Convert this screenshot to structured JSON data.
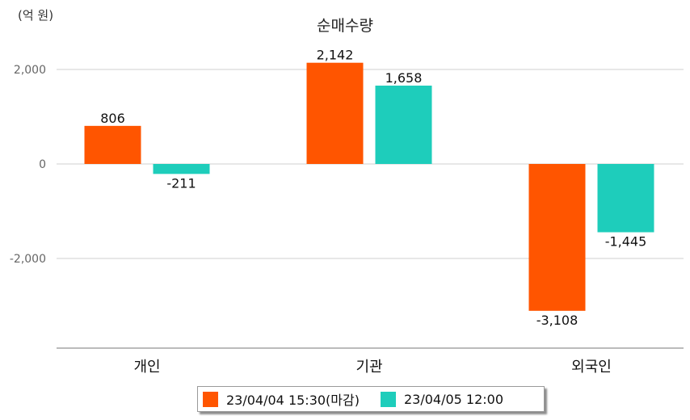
{
  "unit_label": "(억 원)",
  "chart_data": {
    "type": "bar",
    "title": "순매수량",
    "xlabel": "",
    "ylabel": "",
    "ylim": [
      -3900,
      2500
    ],
    "yticks": [
      -2000,
      0,
      2000
    ],
    "ytick_labels": [
      "-2,000",
      "0",
      "2,000"
    ],
    "grid": true,
    "legend_position": "bottom",
    "categories": [
      "개인",
      "기관",
      "외국인"
    ],
    "series": [
      {
        "name": "23/04/04 15:30(마감)",
        "color": "#ff5500",
        "values": [
          806,
          2142,
          -3108
        ],
        "labels": [
          "806",
          "2,142",
          "-3,108"
        ]
      },
      {
        "name": "23/04/05 12:00",
        "color": "#1ecdbb",
        "values": [
          -211,
          1658,
          -1445
        ],
        "labels": [
          "-211",
          "1,658",
          "-1,445"
        ]
      }
    ]
  }
}
